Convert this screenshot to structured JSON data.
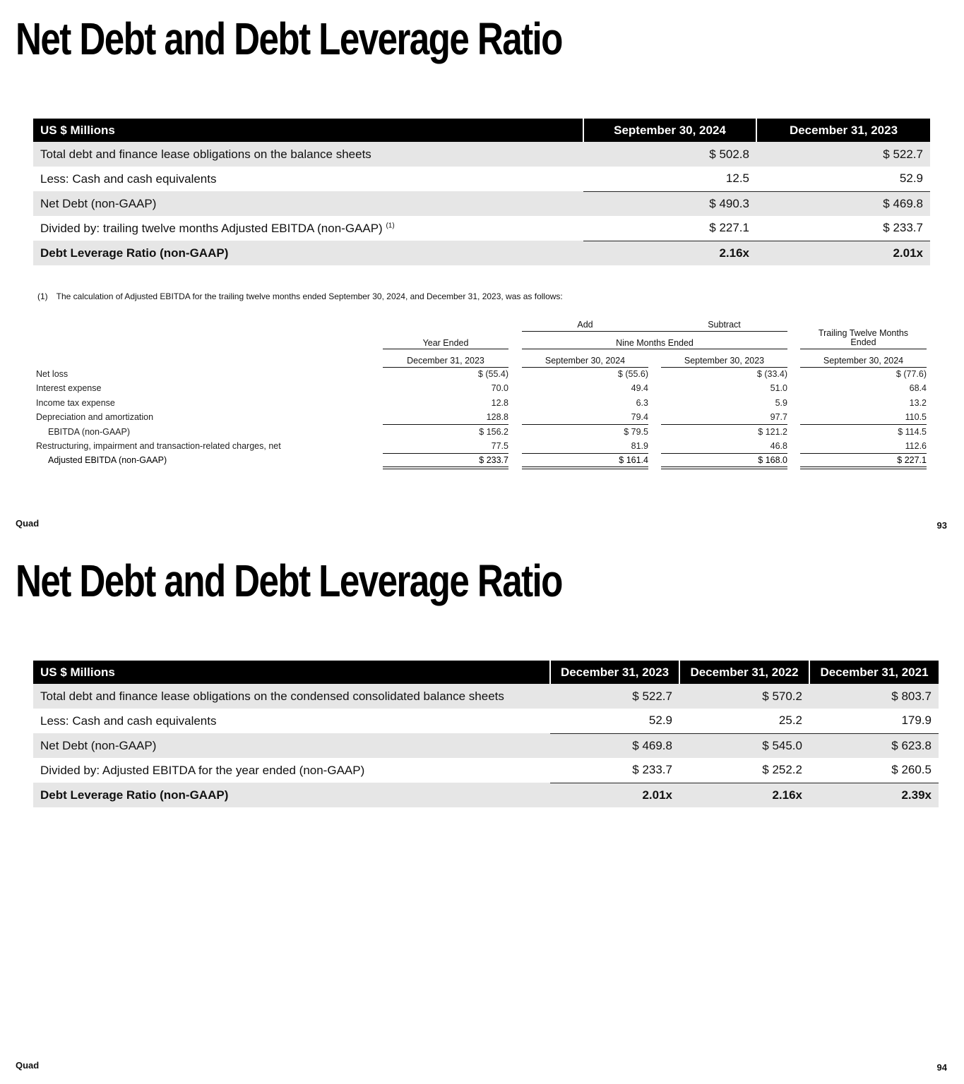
{
  "title": "Net Debt and Debt Leverage Ratio",
  "brand": "Quad",
  "page1": {
    "page_number": "93",
    "table": {
      "headers": [
        "US $ Millions",
        "September 30, 2024",
        "December 31, 2023"
      ],
      "rows": [
        {
          "label": "Total debt and finance lease obligations on the balance sheets",
          "values": [
            "$ 502.8",
            "$ 522.7"
          ]
        },
        {
          "label": "Less: Cash and cash equivalents",
          "values": [
            "12.5",
            "52.9"
          ]
        },
        {
          "label": "Net Debt (non-GAAP)",
          "values": [
            "$ 490.3",
            "$ 469.8"
          ]
        },
        {
          "label": "Divided by: trailing twelve months Adjusted EBITDA (non-GAAP)",
          "footnote_ref": "(1)",
          "values": [
            "$ 227.1",
            "$ 233.7"
          ]
        },
        {
          "label": "Debt Leverage Ratio (non-GAAP)",
          "values": [
            "2.16x",
            "2.01x"
          ]
        }
      ]
    },
    "footnote": {
      "marker": "(1)",
      "text": "The calculation of Adjusted EBITDA for the trailing twelve months ended September 30, 2024, and December 31, 2023, was as follows:"
    },
    "ebitda_table": {
      "group_headers": {
        "add": "Add",
        "subtract": "Subtract",
        "year_ended": "Year Ended",
        "nine_months": "Nine Months Ended",
        "ttm": "Trailing Twelve Months Ended"
      },
      "columns": [
        "December 31, 2023",
        "September 30, 2024",
        "September 30, 2023",
        "September 30, 2024"
      ],
      "rows": [
        {
          "label": "Net loss",
          "values": [
            "$ (55.4)",
            "$ (55.6)",
            "$ (33.4)",
            "$ (77.6)"
          ]
        },
        {
          "label": "Interest expense",
          "values": [
            "70.0",
            "49.4",
            "51.0",
            "68.4"
          ]
        },
        {
          "label": "Income tax expense",
          "values": [
            "12.8",
            "6.3",
            "5.9",
            "13.2"
          ]
        },
        {
          "label": "Depreciation and amortization",
          "values": [
            "128.8",
            "79.4",
            "97.7",
            "110.5"
          ]
        },
        {
          "label": "EBITDA (non-GAAP)",
          "values": [
            "$ 156.2",
            "$ 79.5",
            "$ 121.2",
            "$ 114.5"
          ]
        },
        {
          "label": "Restructuring, impairment and transaction-related charges, net",
          "values": [
            "77.5",
            "81.9",
            "46.8",
            "112.6"
          ]
        },
        {
          "label": "Adjusted EBITDA (non-GAAP)",
          "values": [
            "$ 233.7",
            "$ 161.4",
            "$ 168.0",
            "$ 227.1"
          ]
        }
      ]
    }
  },
  "page2": {
    "page_number": "94",
    "table": {
      "headers": [
        "US $ Millions",
        "December 31, 2023",
        "December 31, 2022",
        "December 31, 2021"
      ],
      "rows": [
        {
          "label": "Total debt and finance lease obligations on the condensed consolidated balance sheets",
          "values": [
            "$ 522.7",
            "$ 570.2",
            "$ 803.7"
          ]
        },
        {
          "label": "Less: Cash and cash equivalents",
          "values": [
            "52.9",
            "25.2",
            "179.9"
          ]
        },
        {
          "label": "Net Debt (non-GAAP)",
          "values": [
            "$ 469.8",
            "$ 545.0",
            "$ 623.8"
          ]
        },
        {
          "label": "Divided by: Adjusted EBITDA for the year ended (non-GAAP)",
          "values": [
            "$ 233.7",
            "$ 252.2",
            "$ 260.5"
          ]
        },
        {
          "label": "Debt Leverage Ratio (non-GAAP)",
          "values": [
            "2.01x",
            "2.16x",
            "2.39x"
          ]
        }
      ]
    }
  }
}
